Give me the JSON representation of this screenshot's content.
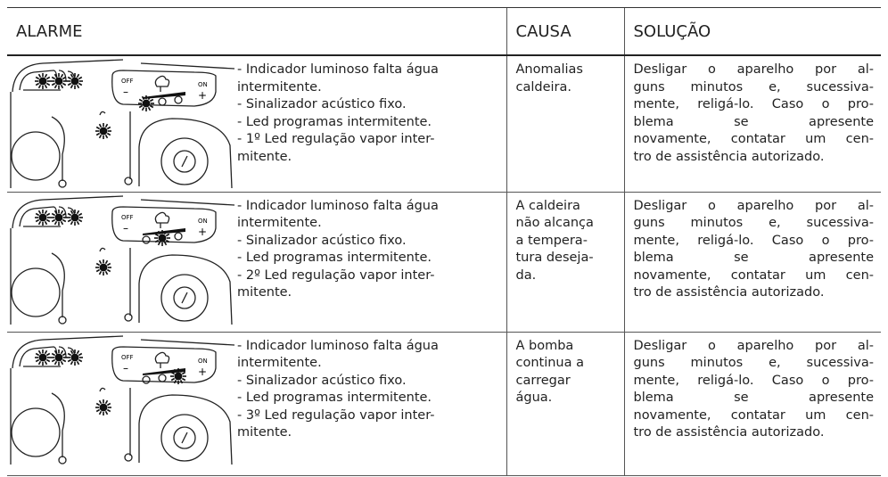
{
  "header": {
    "alarme": "ALARME",
    "causa": "CAUSA",
    "solucao": "SOLUÇÃO"
  },
  "diagram": {
    "off": "OFF",
    "on": "ON",
    "minus": "–",
    "plus": "+"
  },
  "rows": [
    {
      "alarme": [
        "- Indicador luminoso falta água",
        "intermitente.",
        "- Sinalizador acústico fixo.",
        "- Led programas intermitente.",
        "- 1º Led regulação vapor inter-",
        "mitente."
      ],
      "causa": [
        "Anomalias",
        "caldeira."
      ],
      "solucao": [
        "Desligar o aparelho por al-",
        "guns minutos e, sucessiva-",
        "mente, religá-lo. Caso o pro-",
        "blema se apresente",
        "novamente, contatar um cen-",
        "tro de assistência autorizado."
      ]
    },
    {
      "alarme": [
        "- Indicador luminoso falta água",
        "intermitente.",
        "- Sinalizador acústico fixo.",
        "- Led programas intermitente.",
        "- 2º Led regulação vapor inter-",
        "mitente."
      ],
      "causa": [
        "A caldeira",
        "não alcança",
        "a tempera-",
        "tura deseja-",
        "da."
      ],
      "solucao": [
        "Desligar o aparelho por al-",
        "guns minutos e, sucessiva-",
        "mente, religá-lo. Caso o pro-",
        "blema se apresente",
        "novamente, contatar um cen-",
        "tro de assistência autorizado."
      ]
    },
    {
      "alarme": [
        "- Indicador luminoso falta água",
        "intermitente.",
        "- Sinalizador acústico fixo.",
        "- Led programas intermitente.",
        "- 3º Led regulação vapor inter-",
        "mitente."
      ],
      "causa": [
        "A bomba",
        "continua a",
        "carregar",
        "água."
      ],
      "solucao": [
        "Desligar o aparelho por al-",
        "guns minutos e, sucessiva-",
        "mente, religá-lo. Caso o pro-",
        "blema se apresente",
        "novamente, contatar um cen-",
        "tro de assistência autorizado."
      ]
    }
  ]
}
